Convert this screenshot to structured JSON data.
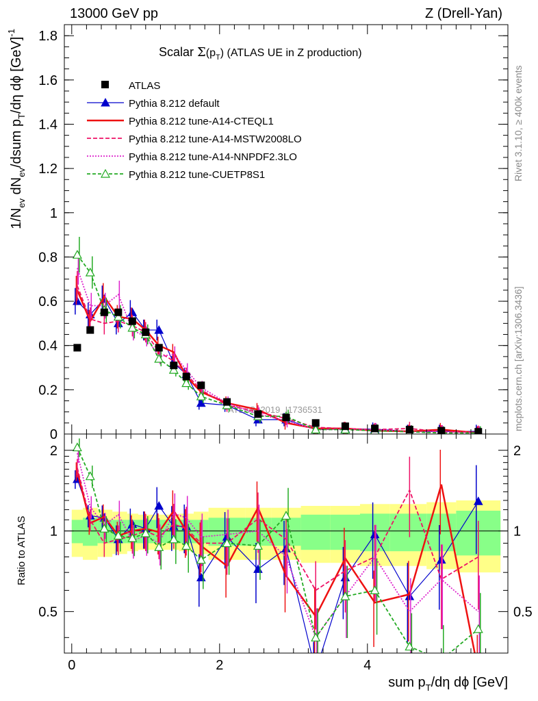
{
  "header": {
    "left": "13000 GeV pp",
    "right": "Z (Drell-Yan)"
  },
  "side_text": {
    "rivet": "Rivet 3.1.10, ≥ 400k events",
    "source": "mcplots.cern.ch [arXiv:1306.3436]"
  },
  "watermark": "ATLAS_2019_I1736531",
  "chart_data": [
    {
      "type": "line",
      "panel": "main",
      "title": "Scalar Σ(pT) (ATLAS UE in Z production)",
      "title_parts": {
        "prefix": "Scalar ",
        "sigma": "Σ",
        "open": "(p",
        "sub": "T",
        "close": ")",
        "suffix": " (ATLAS UE in Z production)"
      },
      "ylabel": "1/Nev dNev/dsum pT/dη dϕ [GeV]^-1",
      "ylabel_parts": {
        "a": "1/N",
        "b": "ev",
        "c": " dN",
        "d": "ev",
        "e": "/dsum p",
        "f": "T",
        "g": "/dη dϕ  [GeV]",
        "h": "-1"
      },
      "xlim": [
        -0.1,
        5.9
      ],
      "ylim": [
        0,
        1.85
      ],
      "yticks": [
        0,
        0.2,
        0.4,
        0.6,
        0.8,
        1,
        1.2,
        1.4,
        1.6,
        1.8
      ],
      "ytick_labels": [
        "0",
        "0.2",
        "0.4",
        "0.6",
        "0.8",
        "1",
        "1.2",
        "1.4",
        "1.6",
        "1.8"
      ],
      "x": [
        0.075,
        0.25,
        0.44,
        0.63,
        0.82,
        1.0,
        1.18,
        1.38,
        1.55,
        1.75,
        2.1,
        2.52,
        2.9,
        3.3,
        3.7,
        4.1,
        4.57,
        5.0,
        5.5
      ],
      "atlas": [
        0.39,
        0.47,
        0.55,
        0.55,
        0.51,
        0.46,
        0.39,
        0.31,
        0.26,
        0.22,
        0.145,
        0.09,
        0.075,
        0.05,
        0.035,
        0.025,
        0.02,
        0.015,
        0.01
      ],
      "series": [
        {
          "name": "Pythia 8.212 default",
          "color": "#0000cc",
          "dash": "solid",
          "marker": "triangle-filled",
          "values": [
            0.6,
            0.54,
            0.61,
            0.5,
            0.55,
            0.47,
            0.47,
            0.32,
            0.27,
            0.14,
            0.13,
            0.065,
            0.065,
            0.02,
            0.023,
            0.022,
            0.012,
            0.012,
            0.012
          ]
        },
        {
          "name": "Pythia 8.212 tune-A14-CTEQL1",
          "color": "#ee1111",
          "dash": "solid",
          "marker": "none",
          "values": [
            0.65,
            0.51,
            0.62,
            0.53,
            0.52,
            0.47,
            0.4,
            0.37,
            0.26,
            0.19,
            0.14,
            0.11,
            0.05,
            0.025,
            0.025,
            0.015,
            0.012,
            0.02,
            0.005
          ]
        },
        {
          "name": "Pythia 8.212 tune-A14-MSTW2008LO",
          "color": "#ee1166",
          "dash": "6,3",
          "marker": "none",
          "values": [
            0.67,
            0.52,
            0.5,
            0.51,
            0.49,
            0.46,
            0.37,
            0.33,
            0.27,
            0.2,
            0.13,
            0.1,
            0.07,
            0.03,
            0.025,
            0.02,
            0.025,
            0.01,
            0.008
          ]
        },
        {
          "name": "Pythia 8.212 tune-A14-NNPDF2.3LO",
          "color": "#dd22cc",
          "dash": "2,2",
          "marker": "none",
          "values": [
            0.75,
            0.58,
            0.58,
            0.63,
            0.47,
            0.44,
            0.35,
            0.36,
            0.29,
            0.21,
            0.14,
            0.09,
            0.06,
            0.02,
            0.02,
            0.02,
            0.01,
            0.01,
            0.005
          ]
        },
        {
          "name": "Pythia 8.212 tune-CUETP8S1",
          "color": "#22aa22",
          "dash": "5,3",
          "marker": "triangle-open",
          "values": [
            0.81,
            0.73,
            0.56,
            0.53,
            0.48,
            0.45,
            0.34,
            0.29,
            0.23,
            0.17,
            0.13,
            0.08,
            0.08,
            0.02,
            0.02,
            0.015,
            0.01,
            0.005,
            0.005
          ]
        }
      ],
      "legend": {
        "position": "top-left",
        "atlas_label": "ATLAS"
      }
    },
    {
      "type": "line",
      "panel": "ratio",
      "ylabel": "Ratio to ATLAS",
      "xlabel": "sum pT/dη dϕ [GeV]",
      "xlabel_parts": {
        "a": "sum p",
        "b": "T",
        "c": "/dη dϕ [GeV]"
      },
      "xlim": [
        -0.1,
        5.9
      ],
      "ylim": [
        0.35,
        2.3
      ],
      "log_y": true,
      "yticks": [
        0.5,
        1,
        2
      ],
      "ytick_labels": [
        "0.5",
        "1",
        "2"
      ],
      "xticks": [
        0,
        2,
        4
      ],
      "xtick_labels": [
        "0",
        "2",
        "4"
      ],
      "band_edges": [
        0,
        0.15,
        0.35,
        0.55,
        0.75,
        0.9,
        1.1,
        1.3,
        1.45,
        1.65,
        1.85,
        2.35,
        2.7,
        3.1,
        3.5,
        3.9,
        4.3,
        4.8,
        5.2,
        5.8
      ],
      "band_inner": [
        0.1,
        0.12,
        0.1,
        0.1,
        0.1,
        0.1,
        0.1,
        0.1,
        0.1,
        0.1,
        0.12,
        0.12,
        0.12,
        0.15,
        0.15,
        0.16,
        0.16,
        0.16,
        0.19
      ],
      "band_outer": [
        0.2,
        0.22,
        0.2,
        0.18,
        0.16,
        0.15,
        0.15,
        0.15,
        0.16,
        0.18,
        0.22,
        0.22,
        0.22,
        0.24,
        0.24,
        0.26,
        0.26,
        0.28,
        0.3
      ],
      "series": [
        {
          "name": "Pythia 8.212 default",
          "values": [
            1.56,
            1.14,
            1.12,
            0.93,
            1.06,
            1.02,
            1.24,
            1.04,
            1.04,
            0.67,
            0.95,
            0.72,
            0.86,
            0.3,
            0.67,
            0.97,
            0.57,
            0.78,
            1.29
          ]
        },
        {
          "name": "Pythia 8.212 tune-A14-CTEQL1",
          "values": [
            1.67,
            1.07,
            1.13,
            0.96,
            1.0,
            1.02,
            0.99,
            1.19,
            1.0,
            0.88,
            0.74,
            1.22,
            0.68,
            0.48,
            0.79,
            0.54,
            0.58,
            1.49,
            0.3
          ]
        },
        {
          "name": "Pythia 8.212 tune-A14-MSTW2008LO",
          "values": [
            1.72,
            1.1,
            0.9,
            0.93,
            0.96,
            1.0,
            0.95,
            1.06,
            1.02,
            0.9,
            0.9,
            1.11,
            0.93,
            0.6,
            0.71,
            0.8,
            1.42,
            0.66,
            0.8
          ]
        },
        {
          "name": "Pythia 8.212 tune-A14-NNPDF2.3LO",
          "values": [
            1.95,
            1.23,
            1.05,
            1.15,
            0.92,
            0.96,
            0.9,
            1.16,
            1.12,
            0.95,
            0.97,
            1.0,
            0.8,
            0.4,
            0.57,
            0.8,
            0.5,
            0.66,
            0.5
          ]
        },
        {
          "name": "Pythia 8.212 tune-CUETP8S1",
          "values": [
            2.05,
            1.6,
            1.02,
            0.96,
            0.94,
            0.98,
            0.87,
            0.93,
            0.88,
            0.78,
            0.9,
            0.88,
            1.14,
            0.4,
            0.57,
            0.6,
            0.37,
            0.33,
            0.43
          ]
        }
      ]
    }
  ]
}
